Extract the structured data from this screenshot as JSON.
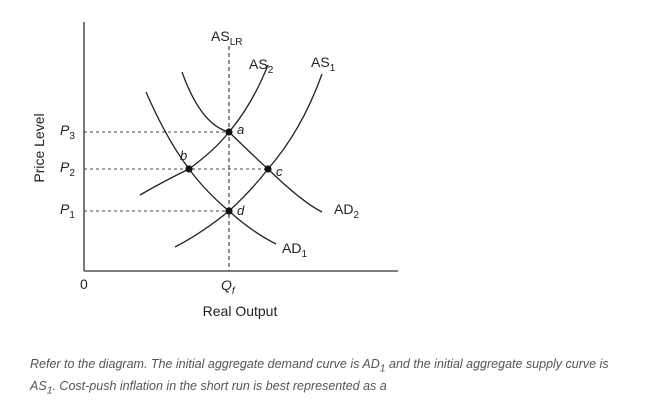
{
  "diagram": {
    "y_axis_label": "Price Level",
    "x_axis_label": "Real Output",
    "origin_label": "0",
    "price_labels": [
      {
        "main": "P",
        "sub": "3"
      },
      {
        "main": "P",
        "sub": "2"
      },
      {
        "main": "P",
        "sub": "1"
      }
    ],
    "output_label": {
      "main": "Q",
      "sub": "f"
    },
    "curves": {
      "as_lr": {
        "main": "AS",
        "sub": "LR"
      },
      "as2": {
        "main": "AS",
        "sub": "2"
      },
      "as1": {
        "main": "AS",
        "sub": "1"
      },
      "ad2": {
        "main": "AD",
        "sub": "2"
      },
      "ad1": {
        "main": "AD",
        "sub": "1"
      }
    },
    "points": {
      "a": "a",
      "b": "b",
      "c": "c",
      "d": "d"
    }
  },
  "caption": {
    "part1": "Refer to the diagram. The initial aggregate demand curve is AD",
    "sub1": "1",
    "part2": " and the initial aggregate supply curve is AS",
    "sub2": "1",
    "part3": ". Cost-push inflation in the short run is best represented as a"
  }
}
